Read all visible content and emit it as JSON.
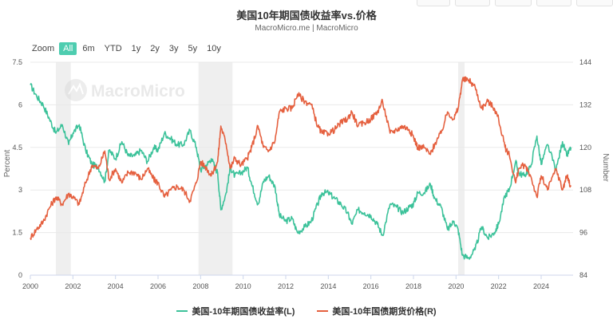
{
  "header": {
    "title": "美国10年期国债收益率vs.价格",
    "subtitle": "MacroMicro.me | MacroMicro"
  },
  "zoom": {
    "label": "Zoom",
    "options": [
      "All",
      "6m",
      "YTD",
      "1y",
      "2y",
      "3y",
      "5y",
      "10y"
    ],
    "selected": "All"
  },
  "watermark": "MacroMicro",
  "colors": {
    "yield": "#3cc29a",
    "price": "#e5603f",
    "recession": "#efefef",
    "grid": "#eaeaea"
  },
  "chart_data": {
    "type": "line",
    "x_range": [
      2000,
      2025.5
    ],
    "x_ticks": [
      "2000",
      "2002",
      "2004",
      "2006",
      "2008",
      "2010",
      "2012",
      "2014",
      "2016",
      "2018",
      "2020",
      "2022",
      "2024"
    ],
    "left_axis": {
      "label": "Percent",
      "range": [
        0,
        7.5
      ],
      "ticks": [
        "0",
        "1.5",
        "3",
        "4.5",
        "6",
        "7.5"
      ]
    },
    "right_axis": {
      "label": "Number",
      "range": [
        84,
        144
      ],
      "ticks": [
        "84",
        "96",
        "108",
        "120",
        "132",
        "144"
      ]
    },
    "recession_bands": [
      [
        2001.2,
        2001.9
      ],
      [
        2007.9,
        2009.5
      ],
      [
        2020.1,
        2020.4
      ]
    ],
    "series": [
      {
        "name": "美国-10年期国债收益率(L)",
        "axis": "left",
        "points": [
          [
            2000.0,
            6.7
          ],
          [
            2000.3,
            6.3
          ],
          [
            2000.6,
            6.0
          ],
          [
            2000.9,
            5.5
          ],
          [
            2001.2,
            5.0
          ],
          [
            2001.5,
            5.3
          ],
          [
            2001.8,
            4.6
          ],
          [
            2002.0,
            5.0
          ],
          [
            2002.3,
            5.3
          ],
          [
            2002.6,
            4.4
          ],
          [
            2002.9,
            3.9
          ],
          [
            2003.2,
            3.8
          ],
          [
            2003.5,
            3.3
          ],
          [
            2003.7,
            4.4
          ],
          [
            2004.0,
            4.1
          ],
          [
            2004.3,
            4.7
          ],
          [
            2004.6,
            4.2
          ],
          [
            2004.9,
            4.2
          ],
          [
            2005.2,
            4.4
          ],
          [
            2005.5,
            4.0
          ],
          [
            2005.8,
            4.5
          ],
          [
            2006.0,
            4.4
          ],
          [
            2006.3,
            5.0
          ],
          [
            2006.6,
            4.8
          ],
          [
            2006.9,
            4.6
          ],
          [
            2007.2,
            4.6
          ],
          [
            2007.5,
            5.1
          ],
          [
            2007.8,
            4.5
          ],
          [
            2008.0,
            3.7
          ],
          [
            2008.3,
            3.9
          ],
          [
            2008.5,
            4.1
          ],
          [
            2008.8,
            3.6
          ],
          [
            2008.95,
            2.3
          ],
          [
            2009.2,
            2.9
          ],
          [
            2009.4,
            3.8
          ],
          [
            2009.6,
            3.5
          ],
          [
            2009.9,
            3.6
          ],
          [
            2010.2,
            3.8
          ],
          [
            2010.4,
            3.2
          ],
          [
            2010.7,
            2.5
          ],
          [
            2010.95,
            3.3
          ],
          [
            2011.2,
            3.5
          ],
          [
            2011.5,
            3.1
          ],
          [
            2011.7,
            2.1
          ],
          [
            2012.0,
            1.9
          ],
          [
            2012.3,
            2.0
          ],
          [
            2012.55,
            1.5
          ],
          [
            2012.9,
            1.7
          ],
          [
            2013.2,
            1.9
          ],
          [
            2013.5,
            2.5
          ],
          [
            2013.7,
            2.9
          ],
          [
            2014.0,
            2.9
          ],
          [
            2014.3,
            2.7
          ],
          [
            2014.6,
            2.5
          ],
          [
            2014.9,
            2.2
          ],
          [
            2015.1,
            1.8
          ],
          [
            2015.4,
            2.3
          ],
          [
            2015.7,
            2.2
          ],
          [
            2016.0,
            2.1
          ],
          [
            2016.3,
            1.8
          ],
          [
            2016.55,
            1.4
          ],
          [
            2016.9,
            2.5
          ],
          [
            2017.2,
            2.4
          ],
          [
            2017.5,
            2.2
          ],
          [
            2017.8,
            2.4
          ],
          [
            2018.0,
            2.5
          ],
          [
            2018.2,
            2.9
          ],
          [
            2018.5,
            2.9
          ],
          [
            2018.8,
            3.2
          ],
          [
            2019.0,
            2.7
          ],
          [
            2019.3,
            2.4
          ],
          [
            2019.6,
            1.6
          ],
          [
            2019.9,
            1.9
          ],
          [
            2020.1,
            1.6
          ],
          [
            2020.3,
            0.7
          ],
          [
            2020.6,
            0.6
          ],
          [
            2020.9,
            0.9
          ],
          [
            2021.2,
            1.7
          ],
          [
            2021.5,
            1.3
          ],
          [
            2021.8,
            1.5
          ],
          [
            2022.0,
            1.8
          ],
          [
            2022.3,
            2.8
          ],
          [
            2022.5,
            3.0
          ],
          [
            2022.8,
            4.0
          ],
          [
            2022.95,
            3.6
          ],
          [
            2023.2,
            3.5
          ],
          [
            2023.5,
            3.8
          ],
          [
            2023.8,
            4.9
          ],
          [
            2024.0,
            3.9
          ],
          [
            2024.3,
            4.6
          ],
          [
            2024.7,
            3.7
          ],
          [
            2025.0,
            4.7
          ],
          [
            2025.2,
            4.2
          ],
          [
            2025.4,
            4.5
          ]
        ]
      },
      {
        "name": "美国-10年国债期货价格(R)",
        "axis": "right",
        "points": [
          [
            2000.0,
            94.5
          ],
          [
            2000.3,
            97
          ],
          [
            2000.6,
            99
          ],
          [
            2000.9,
            103
          ],
          [
            2001.2,
            106
          ],
          [
            2001.5,
            104
          ],
          [
            2001.8,
            107
          ],
          [
            2002.0,
            106
          ],
          [
            2002.3,
            104
          ],
          [
            2002.6,
            110
          ],
          [
            2002.9,
            115
          ],
          [
            2003.2,
            114
          ],
          [
            2003.5,
            119
          ],
          [
            2003.7,
            111
          ],
          [
            2004.0,
            114
          ],
          [
            2004.3,
            110
          ],
          [
            2004.6,
            113
          ],
          [
            2004.9,
            113
          ],
          [
            2005.2,
            111
          ],
          [
            2005.5,
            114
          ],
          [
            2005.8,
            111
          ],
          [
            2006.0,
            110
          ],
          [
            2006.3,
            106
          ],
          [
            2006.6,
            108
          ],
          [
            2006.9,
            109
          ],
          [
            2007.2,
            108
          ],
          [
            2007.5,
            105
          ],
          [
            2007.8,
            110
          ],
          [
            2008.0,
            116
          ],
          [
            2008.3,
            114
          ],
          [
            2008.5,
            112
          ],
          [
            2008.8,
            116
          ],
          [
            2008.95,
            126
          ],
          [
            2009.2,
            121
          ],
          [
            2009.4,
            114
          ],
          [
            2009.6,
            117
          ],
          [
            2009.9,
            115
          ],
          [
            2010.2,
            117
          ],
          [
            2010.4,
            120
          ],
          [
            2010.7,
            126
          ],
          [
            2010.95,
            120
          ],
          [
            2011.2,
            119
          ],
          [
            2011.5,
            122
          ],
          [
            2011.7,
            130
          ],
          [
            2012.0,
            131
          ],
          [
            2012.3,
            131
          ],
          [
            2012.55,
            135
          ],
          [
            2012.9,
            133
          ],
          [
            2013.2,
            132
          ],
          [
            2013.5,
            126
          ],
          [
            2013.7,
            124
          ],
          [
            2014.0,
            124
          ],
          [
            2014.3,
            125
          ],
          [
            2014.6,
            127
          ],
          [
            2014.9,
            128
          ],
          [
            2015.1,
            130
          ],
          [
            2015.4,
            126
          ],
          [
            2015.7,
            127
          ],
          [
            2016.0,
            128
          ],
          [
            2016.3,
            130
          ],
          [
            2016.55,
            133
          ],
          [
            2016.9,
            124
          ],
          [
            2017.2,
            125
          ],
          [
            2017.5,
            126
          ],
          [
            2017.8,
            125
          ],
          [
            2018.0,
            123
          ],
          [
            2018.2,
            120
          ],
          [
            2018.5,
            120
          ],
          [
            2018.8,
            118
          ],
          [
            2019.0,
            121
          ],
          [
            2019.3,
            124
          ],
          [
            2019.6,
            130
          ],
          [
            2019.9,
            128
          ],
          [
            2020.1,
            131
          ],
          [
            2020.3,
            139
          ],
          [
            2020.6,
            139
          ],
          [
            2020.9,
            137
          ],
          [
            2021.2,
            131
          ],
          [
            2021.5,
            133
          ],
          [
            2021.8,
            131
          ],
          [
            2022.0,
            128
          ],
          [
            2022.3,
            120
          ],
          [
            2022.5,
            118
          ],
          [
            2022.8,
            110
          ],
          [
            2022.95,
            114
          ],
          [
            2023.2,
            115
          ],
          [
            2023.5,
            112
          ],
          [
            2023.8,
            106
          ],
          [
            2024.0,
            112
          ],
          [
            2024.3,
            108
          ],
          [
            2024.7,
            114
          ],
          [
            2025.0,
            108
          ],
          [
            2025.2,
            112
          ],
          [
            2025.4,
            109
          ]
        ]
      }
    ]
  }
}
